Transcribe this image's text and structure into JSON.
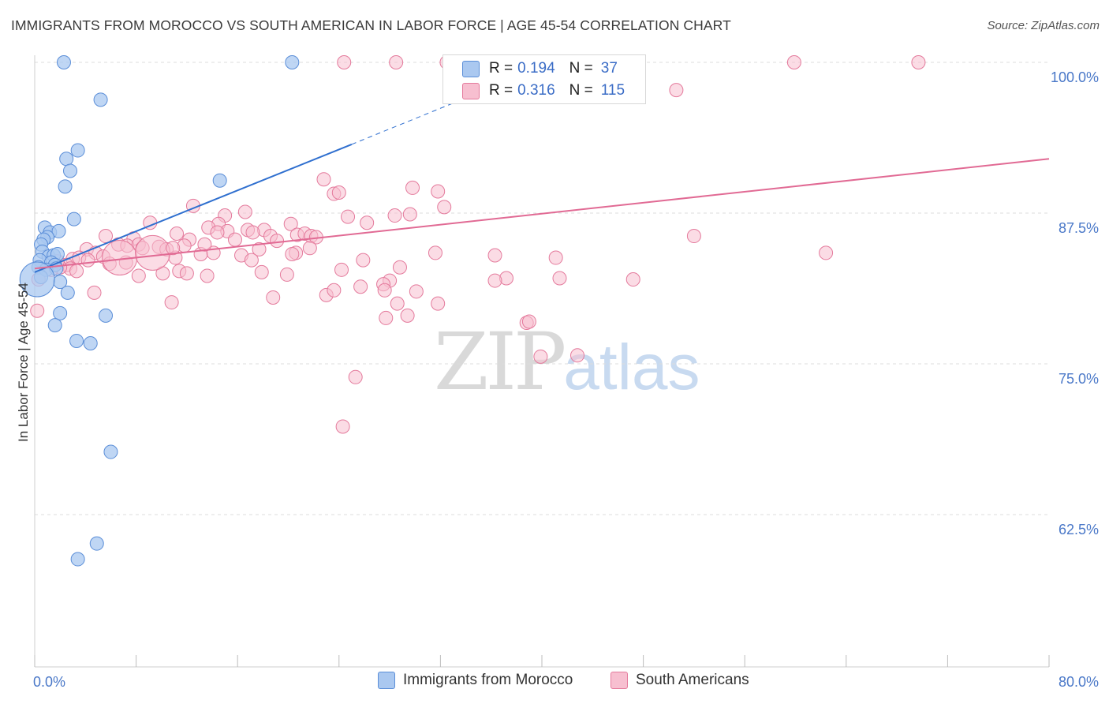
{
  "header": {
    "title": "IMMIGRANTS FROM MOROCCO VS SOUTH AMERICAN IN LABOR FORCE | AGE 45-54 CORRELATION CHART",
    "source": "Source: ZipAtlas.com"
  },
  "watermark": {
    "zip": "ZIP",
    "atlas": "atlas"
  },
  "legend": {
    "rows": [
      {
        "r_label": "R =",
        "r_value": "0.194",
        "n_label": "N =",
        "n_value": "37",
        "color": "#aac8f0",
        "border": "#5b8ed8"
      },
      {
        "r_label": "R =",
        "r_value": "0.316",
        "n_label": "N =",
        "n_value": "115",
        "color": "#f7bfd0",
        "border": "#e47a9c"
      }
    ]
  },
  "bottom_legend": {
    "items": [
      {
        "label": "Immigrants from Morocco",
        "color": "#aac8f0",
        "border": "#5b8ed8"
      },
      {
        "label": "South Americans",
        "color": "#f7bfd0",
        "border": "#e47a9c"
      }
    ]
  },
  "chart_data": {
    "type": "scatter",
    "title": "IMMIGRANTS FROM MOROCCO VS SOUTH AMERICAN IN LABOR FORCE | AGE 45-54 CORRELATION CHART",
    "xlabel": "",
    "ylabel": "In Labor Force | Age 45-54",
    "xlim": [
      0,
      80
    ],
    "ylim": [
      50,
      102
    ],
    "x_tick_labels": [
      "0.0%",
      "80.0%"
    ],
    "y_ticks": [
      62.5,
      75.0,
      87.5,
      100.0
    ],
    "y_tick_labels": [
      "62.5%",
      "75.0%",
      "87.5%",
      "100.0%"
    ],
    "series": [
      {
        "name": "Immigrants from Morocco",
        "color": "#aac8f0",
        "stroke": "#5b8ed8",
        "line_color": "#2f6fcf",
        "trend": {
          "x0": 0.0,
          "y0": 82.6,
          "x1": 25.0,
          "y1": 93.2,
          "dash_x1": 36.0,
          "dash_y1": 97.9
        },
        "points": [
          [
            2.3,
            100.0
          ],
          [
            20.3,
            100.0
          ],
          [
            5.2,
            96.9
          ],
          [
            3.4,
            92.7
          ],
          [
            2.5,
            92.0
          ],
          [
            2.8,
            91.0
          ],
          [
            2.4,
            89.7
          ],
          [
            14.6,
            90.2
          ],
          [
            3.1,
            87.0
          ],
          [
            0.8,
            86.3
          ],
          [
            1.2,
            85.9
          ],
          [
            1.9,
            86.0
          ],
          [
            1.0,
            85.5
          ],
          [
            0.7,
            85.3
          ],
          [
            0.5,
            84.9
          ],
          [
            0.6,
            84.3
          ],
          [
            1.1,
            83.9
          ],
          [
            1.5,
            84.0
          ],
          [
            1.8,
            84.1
          ],
          [
            0.4,
            83.6
          ],
          [
            1.3,
            83.4
          ],
          [
            1.6,
            83.2
          ],
          [
            0.3,
            83.0
          ],
          [
            0.9,
            82.8
          ],
          [
            1.7,
            82.9
          ],
          [
            0.5,
            82.2
          ],
          [
            2.0,
            81.8
          ],
          [
            2.6,
            80.9
          ],
          [
            2.0,
            79.2
          ],
          [
            5.6,
            79.0
          ],
          [
            1.6,
            78.2
          ],
          [
            3.3,
            76.9
          ],
          [
            4.4,
            76.7
          ],
          [
            6.0,
            67.7
          ],
          [
            4.9,
            60.1
          ],
          [
            3.4,
            58.8
          ],
          [
            0.2,
            82.0
          ]
        ]
      },
      {
        "name": "South Americans",
        "color": "#f7bfd0",
        "stroke": "#e47a9c",
        "line_color": "#e16a94",
        "trend": {
          "x0": 0.0,
          "y0": 82.9,
          "x1": 80.0,
          "y1": 92.0
        },
        "points": [
          [
            24.4,
            100.0
          ],
          [
            28.5,
            100.0
          ],
          [
            32.5,
            100.0
          ],
          [
            59.9,
            100.0
          ],
          [
            69.7,
            100.0
          ],
          [
            37.1,
            97.2
          ],
          [
            50.6,
            97.7
          ],
          [
            22.8,
            90.3
          ],
          [
            23.6,
            89.1
          ],
          [
            24.0,
            89.2
          ],
          [
            29.8,
            89.6
          ],
          [
            31.8,
            89.3
          ],
          [
            32.3,
            88.0
          ],
          [
            12.5,
            88.1
          ],
          [
            15.0,
            87.3
          ],
          [
            16.6,
            87.6
          ],
          [
            24.7,
            87.2
          ],
          [
            28.4,
            87.3
          ],
          [
            29.6,
            87.4
          ],
          [
            26.2,
            86.7
          ],
          [
            9.1,
            86.7
          ],
          [
            14.5,
            86.6
          ],
          [
            18.1,
            86.1
          ],
          [
            20.2,
            86.6
          ],
          [
            13.7,
            86.3
          ],
          [
            15.2,
            86.0
          ],
          [
            16.8,
            86.1
          ],
          [
            14.4,
            85.9
          ],
          [
            17.2,
            85.9
          ],
          [
            18.6,
            85.6
          ],
          [
            20.7,
            85.7
          ],
          [
            21.3,
            85.8
          ],
          [
            21.8,
            85.6
          ],
          [
            22.2,
            85.5
          ],
          [
            11.2,
            85.8
          ],
          [
            5.6,
            85.6
          ],
          [
            7.8,
            85.4
          ],
          [
            12.2,
            85.3
          ],
          [
            15.8,
            85.3
          ],
          [
            19.1,
            85.2
          ],
          [
            6.6,
            84.9
          ],
          [
            7.3,
            84.8
          ],
          [
            8.2,
            84.9
          ],
          [
            8.5,
            84.6
          ],
          [
            9.8,
            84.7
          ],
          [
            10.4,
            84.5
          ],
          [
            11.8,
            84.8
          ],
          [
            17.7,
            84.5
          ],
          [
            20.6,
            84.2
          ],
          [
            21.7,
            84.6
          ],
          [
            13.1,
            84.1
          ],
          [
            14.1,
            84.2
          ],
          [
            16.3,
            84.0
          ],
          [
            20.3,
            84.1
          ],
          [
            31.6,
            84.2
          ],
          [
            36.3,
            84.0
          ],
          [
            41.1,
            83.8
          ],
          [
            62.4,
            84.2
          ],
          [
            52.0,
            85.6
          ],
          [
            4.1,
            84.5
          ],
          [
            4.8,
            84.2
          ],
          [
            5.4,
            83.9
          ],
          [
            3.0,
            83.7
          ],
          [
            3.5,
            83.8
          ],
          [
            5.9,
            83.3
          ],
          [
            7.2,
            83.4
          ],
          [
            11.1,
            83.8
          ],
          [
            17.1,
            83.6
          ],
          [
            25.9,
            83.6
          ],
          [
            28.8,
            83.0
          ],
          [
            24.2,
            82.8
          ],
          [
            2.5,
            83.2
          ],
          [
            2.8,
            82.9
          ],
          [
            3.3,
            82.7
          ],
          [
            2.0,
            83.0
          ],
          [
            1.3,
            82.8
          ],
          [
            11.4,
            82.7
          ],
          [
            12.0,
            82.5
          ],
          [
            8.2,
            82.3
          ],
          [
            10.1,
            82.5
          ],
          [
            13.6,
            82.3
          ],
          [
            17.9,
            82.6
          ],
          [
            19.9,
            82.4
          ],
          [
            28.0,
            81.9
          ],
          [
            27.5,
            81.6
          ],
          [
            25.7,
            81.4
          ],
          [
            37.2,
            82.1
          ],
          [
            41.4,
            82.1
          ],
          [
            47.2,
            82.0
          ],
          [
            36.3,
            81.9
          ],
          [
            27.6,
            81.1
          ],
          [
            30.1,
            81.0
          ],
          [
            4.7,
            80.9
          ],
          [
            18.8,
            80.5
          ],
          [
            23.0,
            80.7
          ],
          [
            23.6,
            81.1
          ],
          [
            10.8,
            80.1
          ],
          [
            28.6,
            80.0
          ],
          [
            31.8,
            80.0
          ],
          [
            27.7,
            78.8
          ],
          [
            29.4,
            79.0
          ],
          [
            38.8,
            78.4
          ],
          [
            39.0,
            78.5
          ],
          [
            42.8,
            75.7
          ],
          [
            39.9,
            75.6
          ],
          [
            25.3,
            73.9
          ],
          [
            24.3,
            69.8
          ],
          [
            0.3,
            82.0
          ],
          [
            0.2,
            79.4
          ],
          [
            1.8,
            83.5
          ],
          [
            4.2,
            83.6
          ],
          [
            6.7,
            83.8
          ],
          [
            9.3,
            84.2
          ],
          [
            10.9,
            84.6
          ],
          [
            13.4,
            84.9
          ]
        ]
      }
    ],
    "legend_position": "top-center",
    "grid": true
  }
}
